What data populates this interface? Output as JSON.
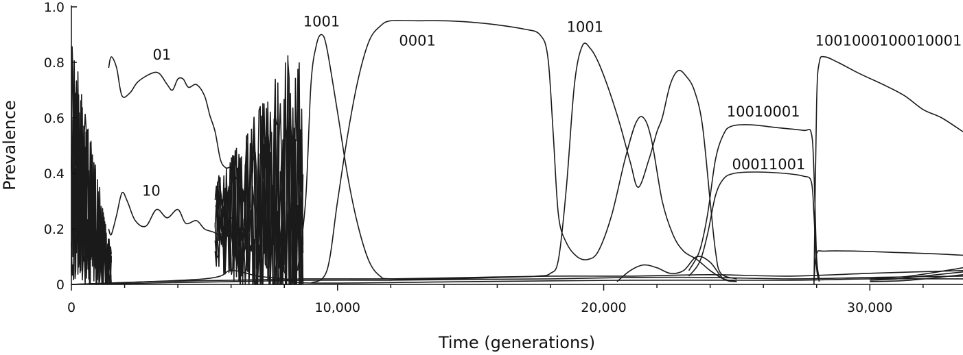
{
  "chart_data": {
    "type": "line",
    "xlabel": "Time (generations)",
    "ylabel": "Prevalence",
    "xlim": [
      0,
      33500
    ],
    "ylim": [
      0,
      1.0
    ],
    "x_ticks": [
      0,
      10000,
      20000,
      30000
    ],
    "x_tick_labels": [
      "0",
      "10,000",
      "20,000",
      "30,000"
    ],
    "y_ticks": [
      0,
      0.2,
      0.4,
      0.6,
      0.8,
      1.0
    ],
    "y_tick_labels": [
      "0",
      "0.2",
      "0.4",
      "0.6",
      "0.8",
      "1.0"
    ],
    "grid": false,
    "annotations": [
      {
        "text": "01",
        "x": 3400,
        "y": 0.81
      },
      {
        "text": "10",
        "x": 3000,
        "y": 0.32
      },
      {
        "text": "1001",
        "x": 9400,
        "y": 0.93
      },
      {
        "text": "0001",
        "x": 13000,
        "y": 0.86
      },
      {
        "text": "1001",
        "x": 19300,
        "y": 0.91
      },
      {
        "text": "10010001",
        "x": 26000,
        "y": 0.605
      },
      {
        "text": "00011001",
        "x": 26200,
        "y": 0.415
      },
      {
        "text": "1001000100010001",
        "x": 30700,
        "y": 0.86
      }
    ],
    "series": [
      {
        "values": [
          [
            1400,
            0.78
          ],
          [
            1500,
            0.82
          ],
          [
            1700,
            0.78
          ],
          [
            1900,
            0.68
          ],
          [
            2200,
            0.69
          ],
          [
            2500,
            0.73
          ],
          [
            3000,
            0.76
          ],
          [
            3300,
            0.76
          ],
          [
            3600,
            0.72
          ],
          [
            3800,
            0.7
          ],
          [
            4000,
            0.74
          ],
          [
            4200,
            0.74
          ],
          [
            4400,
            0.71
          ],
          [
            4700,
            0.72
          ],
          [
            5000,
            0.68
          ],
          [
            5200,
            0.61
          ],
          [
            5400,
            0.55
          ],
          [
            5600,
            0.45
          ],
          [
            5800,
            0.42
          ],
          [
            6000,
            0.42
          ],
          [
            6200,
            0.38
          ]
        ]
      },
      {
        "values": [
          [
            1400,
            0.2
          ],
          [
            1500,
            0.18
          ],
          [
            1700,
            0.25
          ],
          [
            1900,
            0.33
          ],
          [
            2100,
            0.3
          ],
          [
            2400,
            0.23
          ],
          [
            2800,
            0.21
          ],
          [
            3200,
            0.27
          ],
          [
            3600,
            0.24
          ],
          [
            4000,
            0.27
          ],
          [
            4300,
            0.22
          ],
          [
            4700,
            0.23
          ],
          [
            5000,
            0.2
          ],
          [
            5300,
            0.19
          ],
          [
            5600,
            0.18
          ],
          [
            5800,
            0.2
          ],
          [
            6000,
            0.24
          ],
          [
            6200,
            0.2
          ]
        ]
      },
      {
        "values": [
          [
            8500,
            0.05
          ],
          [
            8800,
            0.3
          ],
          [
            9000,
            0.72
          ],
          [
            9200,
            0.86
          ],
          [
            9400,
            0.9
          ],
          [
            9600,
            0.85
          ],
          [
            10000,
            0.62
          ],
          [
            10400,
            0.38
          ],
          [
            10800,
            0.2
          ],
          [
            11200,
            0.08
          ],
          [
            11600,
            0.03
          ],
          [
            12000,
            0.02
          ],
          [
            14000,
            0.02
          ],
          [
            16000,
            0.025
          ],
          [
            17500,
            0.03
          ],
          [
            18000,
            0.04
          ],
          [
            18300,
            0.09
          ],
          [
            18600,
            0.35
          ],
          [
            18900,
            0.72
          ],
          [
            19200,
            0.86
          ],
          [
            19500,
            0.85
          ],
          [
            19800,
            0.8
          ],
          [
            20200,
            0.7
          ],
          [
            20600,
            0.58
          ],
          [
            21000,
            0.44
          ],
          [
            21300,
            0.35
          ],
          [
            21700,
            0.45
          ],
          [
            22000,
            0.55
          ],
          [
            22200,
            0.6
          ],
          [
            22500,
            0.72
          ],
          [
            22800,
            0.77
          ],
          [
            23100,
            0.75
          ],
          [
            23400,
            0.7
          ],
          [
            23700,
            0.58
          ],
          [
            24000,
            0.3
          ],
          [
            24200,
            0.12
          ],
          [
            24400,
            0.04
          ],
          [
            25000,
            0.02
          ]
        ]
      },
      {
        "values": [
          [
            9000,
            0.005
          ],
          [
            9600,
            0.05
          ],
          [
            10000,
            0.3
          ],
          [
            10400,
            0.55
          ],
          [
            10800,
            0.75
          ],
          [
            11200,
            0.88
          ],
          [
            11600,
            0.93
          ],
          [
            12000,
            0.95
          ],
          [
            13000,
            0.95
          ],
          [
            14000,
            0.95
          ],
          [
            15000,
            0.945
          ],
          [
            16000,
            0.935
          ],
          [
            17000,
            0.92
          ],
          [
            17600,
            0.9
          ],
          [
            17900,
            0.82
          ],
          [
            18100,
            0.55
          ],
          [
            18300,
            0.25
          ],
          [
            18600,
            0.15
          ],
          [
            19000,
            0.1
          ],
          [
            19400,
            0.09
          ],
          [
            19800,
            0.12
          ],
          [
            20300,
            0.25
          ],
          [
            20800,
            0.45
          ],
          [
            21200,
            0.58
          ],
          [
            21500,
            0.6
          ],
          [
            21800,
            0.52
          ],
          [
            22200,
            0.3
          ],
          [
            22600,
            0.18
          ],
          [
            23000,
            0.12
          ],
          [
            23500,
            0.09
          ],
          [
            24000,
            0.05
          ],
          [
            24500,
            0.02
          ],
          [
            25000,
            0.01
          ]
        ]
      },
      {
        "values": [
          [
            23200,
            0.05
          ],
          [
            23600,
            0.12
          ],
          [
            23900,
            0.25
          ],
          [
            24200,
            0.45
          ],
          [
            24500,
            0.54
          ],
          [
            24800,
            0.57
          ],
          [
            25500,
            0.575
          ],
          [
            26500,
            0.565
          ],
          [
            27500,
            0.555
          ],
          [
            27800,
            0.545
          ],
          [
            27900,
            0.4
          ],
          [
            28000,
            0.1
          ],
          [
            28100,
            0.02
          ]
        ]
      },
      {
        "values": [
          [
            23200,
            0.03
          ],
          [
            23600,
            0.08
          ],
          [
            23900,
            0.18
          ],
          [
            24200,
            0.32
          ],
          [
            24500,
            0.38
          ],
          [
            24900,
            0.4
          ],
          [
            25700,
            0.405
          ],
          [
            26800,
            0.4
          ],
          [
            27500,
            0.39
          ],
          [
            27800,
            0.37
          ],
          [
            27900,
            0.25
          ],
          [
            28000,
            0.06
          ],
          [
            28100,
            0.01
          ]
        ]
      },
      {
        "values": [
          [
            27900,
            0.0
          ],
          [
            28000,
            0.65
          ],
          [
            28100,
            0.8
          ],
          [
            28300,
            0.82
          ],
          [
            28800,
            0.8
          ],
          [
            29600,
            0.76
          ],
          [
            30500,
            0.72
          ],
          [
            31300,
            0.68
          ],
          [
            32000,
            0.63
          ],
          [
            32700,
            0.6
          ],
          [
            33500,
            0.55
          ]
        ]
      },
      {
        "values": [
          [
            27900,
            0.01
          ],
          [
            28000,
            0.11
          ],
          [
            28300,
            0.12
          ],
          [
            29500,
            0.12
          ],
          [
            31000,
            0.115
          ],
          [
            32500,
            0.11
          ],
          [
            33500,
            0.105
          ]
        ]
      },
      {
        "values": [
          [
            0,
            0.0
          ],
          [
            3000,
            0.01
          ],
          [
            6000,
            0.015
          ],
          [
            9000,
            0.02
          ],
          [
            12000,
            0.02
          ],
          [
            15000,
            0.025
          ],
          [
            18000,
            0.03
          ],
          [
            21000,
            0.03
          ],
          [
            24000,
            0.035
          ],
          [
            27000,
            0.03
          ],
          [
            30000,
            0.04
          ],
          [
            33500,
            0.05
          ]
        ]
      },
      {
        "values": [
          [
            0,
            0.0
          ],
          [
            3000,
            0.005
          ],
          [
            6000,
            0.01
          ],
          [
            9000,
            0.015
          ],
          [
            12000,
            0.015
          ],
          [
            15000,
            0.018
          ],
          [
            18000,
            0.02
          ],
          [
            21000,
            0.025
          ],
          [
            24000,
            0.025
          ],
          [
            27000,
            0.02
          ],
          [
            30000,
            0.025
          ],
          [
            33500,
            0.03
          ]
        ]
      },
      {
        "values": [
          [
            0,
            0.0
          ],
          [
            5000,
            0.02
          ],
          [
            6000,
            0.05
          ],
          [
            7000,
            0.03
          ],
          [
            8000,
            0.02
          ],
          [
            9000,
            0.005
          ],
          [
            15000,
            0.01
          ],
          [
            21000,
            0.015
          ],
          [
            27000,
            0.015
          ],
          [
            30000,
            0.02
          ],
          [
            33500,
            0.02
          ]
        ]
      },
      {
        "values": [
          [
            20500,
            0.01
          ],
          [
            21000,
            0.05
          ],
          [
            21500,
            0.07
          ],
          [
            22000,
            0.06
          ],
          [
            22500,
            0.04
          ],
          [
            23000,
            0.05
          ],
          [
            23500,
            0.1
          ],
          [
            24000,
            0.08
          ],
          [
            24500,
            0.02
          ],
          [
            25000,
            0.01
          ]
        ]
      },
      {
        "values": [
          [
            30000,
            0.015
          ],
          [
            31000,
            0.02
          ],
          [
            32000,
            0.03
          ],
          [
            33500,
            0.045
          ]
        ]
      },
      {
        "values": [
          [
            30000,
            0.01
          ],
          [
            31500,
            0.015
          ],
          [
            33500,
            0.035
          ]
        ]
      },
      {
        "values": [
          [
            30000,
            0.02
          ],
          [
            31500,
            0.03
          ],
          [
            33500,
            0.06
          ]
        ]
      }
    ]
  }
}
